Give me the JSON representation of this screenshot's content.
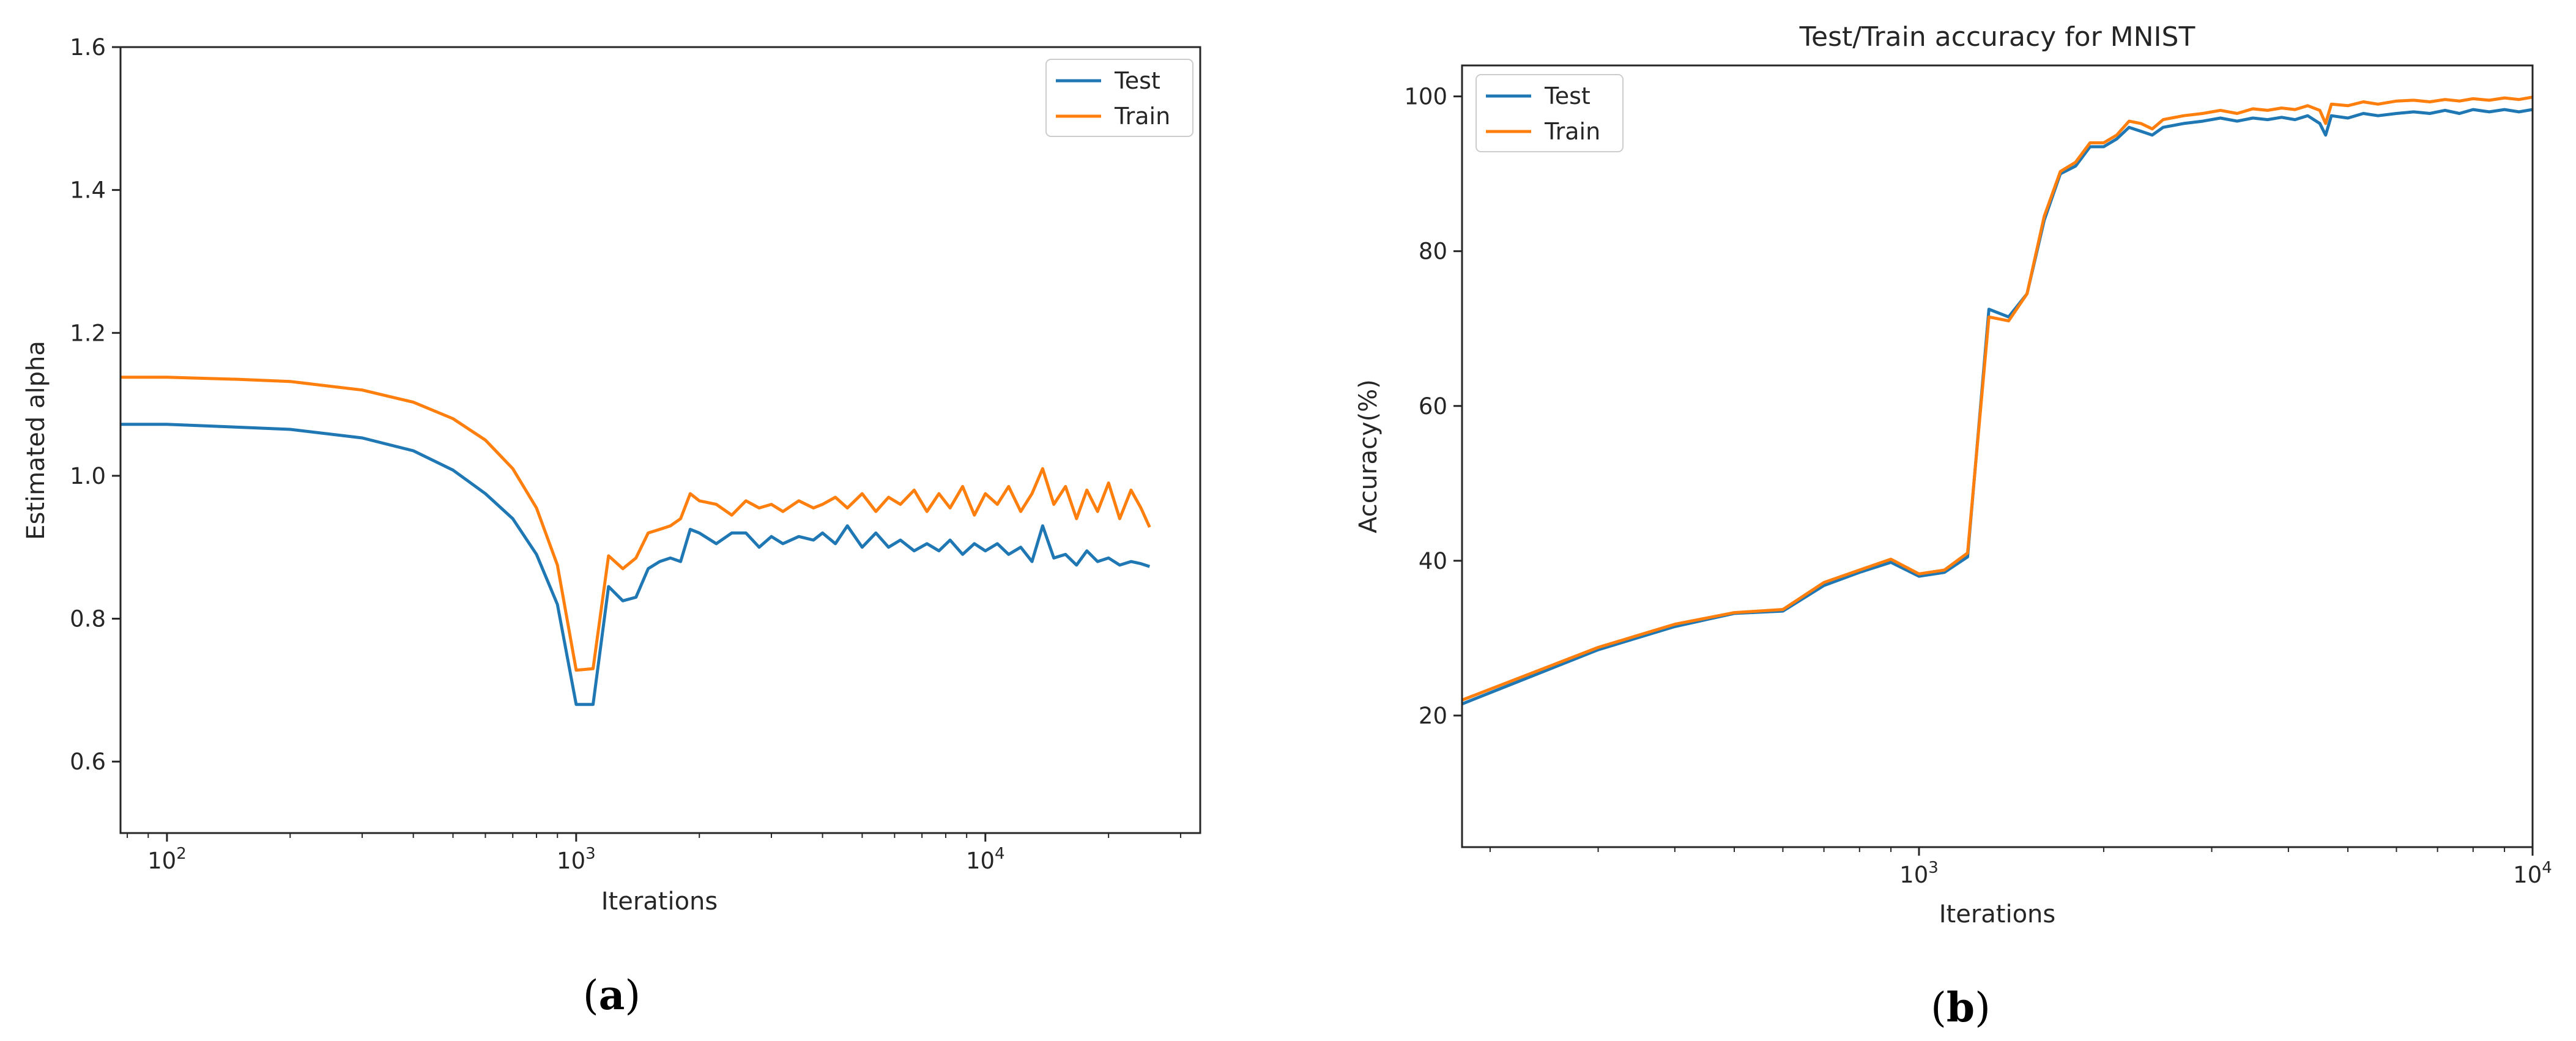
{
  "chart_data": [
    {
      "panel": "a",
      "panel_label": "a",
      "type": "line",
      "title": "",
      "xlabel": "Iterations",
      "ylabel": "Estimated alpha",
      "xscale": "log",
      "xlim": [
        77,
        33500
      ],
      "ylim": [
        0.5,
        1.6
      ],
      "xticks": [
        100,
        1000,
        10000
      ],
      "xtick_labels": [
        {
          "base": "10",
          "exp": "2"
        },
        {
          "base": "10",
          "exp": "3"
        },
        {
          "base": "10",
          "exp": "4"
        }
      ],
      "yticks": [
        0.6,
        0.8,
        1.0,
        1.2,
        1.4,
        1.6
      ],
      "ytick_labels": [
        "0.6",
        "0.8",
        "1.0",
        "1.2",
        "1.4",
        "1.6"
      ],
      "legend": {
        "position": "top-right",
        "entries": [
          "Test",
          "Train"
        ]
      },
      "series": [
        {
          "name": "Test",
          "color": "#1f77b4",
          "x": [
            77,
            100,
            150,
            200,
            300,
            400,
            500,
            600,
            700,
            800,
            900,
            1000,
            1100,
            1200,
            1300,
            1400,
            1500,
            1600,
            1700,
            1800,
            1900,
            2000,
            2200,
            2400,
            2600,
            2800,
            3000,
            3200,
            3500,
            3800,
            4000,
            4300,
            4600,
            5000,
            5400,
            5800,
            6200,
            6700,
            7200,
            7700,
            8200,
            8800,
            9400,
            10000,
            10700,
            11400,
            12200,
            13000,
            13800,
            14700,
            15700,
            16700,
            17700,
            18800,
            20000,
            21300,
            22700,
            24000,
            25200
          ],
          "y": [
            1.072,
            1.072,
            1.068,
            1.065,
            1.053,
            1.035,
            1.008,
            0.975,
            0.94,
            0.89,
            0.82,
            0.68,
            0.68,
            0.845,
            0.825,
            0.83,
            0.87,
            0.88,
            0.885,
            0.88,
            0.925,
            0.92,
            0.905,
            0.92,
            0.92,
            0.9,
            0.915,
            0.905,
            0.915,
            0.91,
            0.92,
            0.905,
            0.93,
            0.9,
            0.92,
            0.9,
            0.91,
            0.895,
            0.905,
            0.895,
            0.91,
            0.89,
            0.905,
            0.895,
            0.905,
            0.89,
            0.9,
            0.88,
            0.93,
            0.885,
            0.89,
            0.875,
            0.895,
            0.88,
            0.885,
            0.875,
            0.88,
            0.877,
            0.873
          ]
        },
        {
          "name": "Train",
          "color": "#ff7f0e",
          "x": [
            77,
            100,
            150,
            200,
            300,
            400,
            500,
            600,
            700,
            800,
            900,
            1000,
            1100,
            1200,
            1300,
            1400,
            1500,
            1600,
            1700,
            1800,
            1900,
            2000,
            2200,
            2400,
            2600,
            2800,
            3000,
            3200,
            3500,
            3800,
            4000,
            4300,
            4600,
            5000,
            5400,
            5800,
            6200,
            6700,
            7200,
            7700,
            8200,
            8800,
            9400,
            10000,
            10700,
            11400,
            12200,
            13000,
            13800,
            14700,
            15700,
            16700,
            17700,
            18800,
            20000,
            21300,
            22700,
            24000,
            25200
          ],
          "y": [
            1.138,
            1.138,
            1.135,
            1.132,
            1.12,
            1.103,
            1.08,
            1.05,
            1.01,
            0.955,
            0.875,
            0.728,
            0.73,
            0.888,
            0.87,
            0.885,
            0.92,
            0.925,
            0.93,
            0.94,
            0.975,
            0.965,
            0.96,
            0.945,
            0.965,
            0.955,
            0.96,
            0.95,
            0.965,
            0.955,
            0.96,
            0.97,
            0.955,
            0.975,
            0.95,
            0.97,
            0.96,
            0.98,
            0.95,
            0.975,
            0.955,
            0.985,
            0.945,
            0.975,
            0.96,
            0.985,
            0.95,
            0.975,
            1.01,
            0.96,
            0.985,
            0.94,
            0.98,
            0.95,
            0.99,
            0.94,
            0.98,
            0.955,
            0.928
          ]
        }
      ]
    },
    {
      "panel": "b",
      "panel_label": "b",
      "type": "line",
      "title": "Test/Train accuracy for MNIST",
      "xlabel": "Iterations",
      "ylabel": "Accuracy(%)",
      "xscale": "log",
      "xlim": [
        180,
        10000
      ],
      "ylim": [
        3,
        104
      ],
      "xticks": [
        1000,
        10000
      ],
      "xtick_labels": [
        {
          "base": "10",
          "exp": "3"
        },
        {
          "base": "10",
          "exp": "4"
        }
      ],
      "yticks": [
        20,
        40,
        60,
        80,
        100
      ],
      "ytick_labels": [
        "20",
        "40",
        "60",
        "80",
        "100"
      ],
      "legend": {
        "position": "top-left",
        "entries": [
          "Test",
          "Train"
        ]
      },
      "series": [
        {
          "name": "Test",
          "color": "#1f77b4",
          "x": [
            180,
            300,
            400,
            500,
            600,
            700,
            800,
            900,
            1000,
            1100,
            1200,
            1300,
            1400,
            1500,
            1600,
            1700,
            1800,
            1900,
            2000,
            2100,
            2200,
            2300,
            2400,
            2500,
            2700,
            2900,
            3100,
            3300,
            3500,
            3700,
            3900,
            4100,
            4300,
            4500,
            4600,
            4700,
            5000,
            5300,
            5600,
            6000,
            6400,
            6800,
            7200,
            7600,
            8000,
            8500,
            9000,
            9500,
            10000
          ],
          "y": [
            21.5,
            28.5,
            31.5,
            33.2,
            33.5,
            36.8,
            38.5,
            39.8,
            38.0,
            38.5,
            40.5,
            72.5,
            71.5,
            74.5,
            84.0,
            90.0,
            91.0,
            93.5,
            93.5,
            94.5,
            96.0,
            95.5,
            95.0,
            96.0,
            96.5,
            96.8,
            97.2,
            96.8,
            97.2,
            97.0,
            97.3,
            97.0,
            97.5,
            96.5,
            95.0,
            97.5,
            97.2,
            97.8,
            97.5,
            97.8,
            98.0,
            97.8,
            98.2,
            97.8,
            98.3,
            98.0,
            98.3,
            98.0,
            98.3
          ]
        },
        {
          "name": "Train",
          "color": "#ff7f0e",
          "x": [
            180,
            300,
            400,
            500,
            600,
            700,
            800,
            900,
            1000,
            1100,
            1200,
            1300,
            1400,
            1500,
            1600,
            1700,
            1800,
            1900,
            2000,
            2100,
            2200,
            2300,
            2400,
            2500,
            2700,
            2900,
            3100,
            3300,
            3500,
            3700,
            3900,
            4100,
            4300,
            4500,
            4600,
            4700,
            5000,
            5300,
            5600,
            6000,
            6400,
            6800,
            7200,
            7600,
            8000,
            8500,
            9000,
            9500,
            10000
          ],
          "y": [
            22.0,
            28.8,
            31.8,
            33.3,
            33.7,
            37.2,
            38.8,
            40.2,
            38.3,
            38.8,
            41.0,
            71.5,
            71.0,
            74.5,
            84.5,
            90.3,
            91.5,
            94.0,
            94.0,
            95.0,
            96.8,
            96.5,
            95.8,
            97.0,
            97.5,
            97.8,
            98.2,
            97.8,
            98.4,
            98.2,
            98.5,
            98.3,
            98.8,
            98.2,
            96.5,
            99.0,
            98.8,
            99.3,
            99.0,
            99.4,
            99.5,
            99.3,
            99.6,
            99.4,
            99.7,
            99.5,
            99.8,
            99.6,
            99.9
          ]
        }
      ]
    }
  ]
}
